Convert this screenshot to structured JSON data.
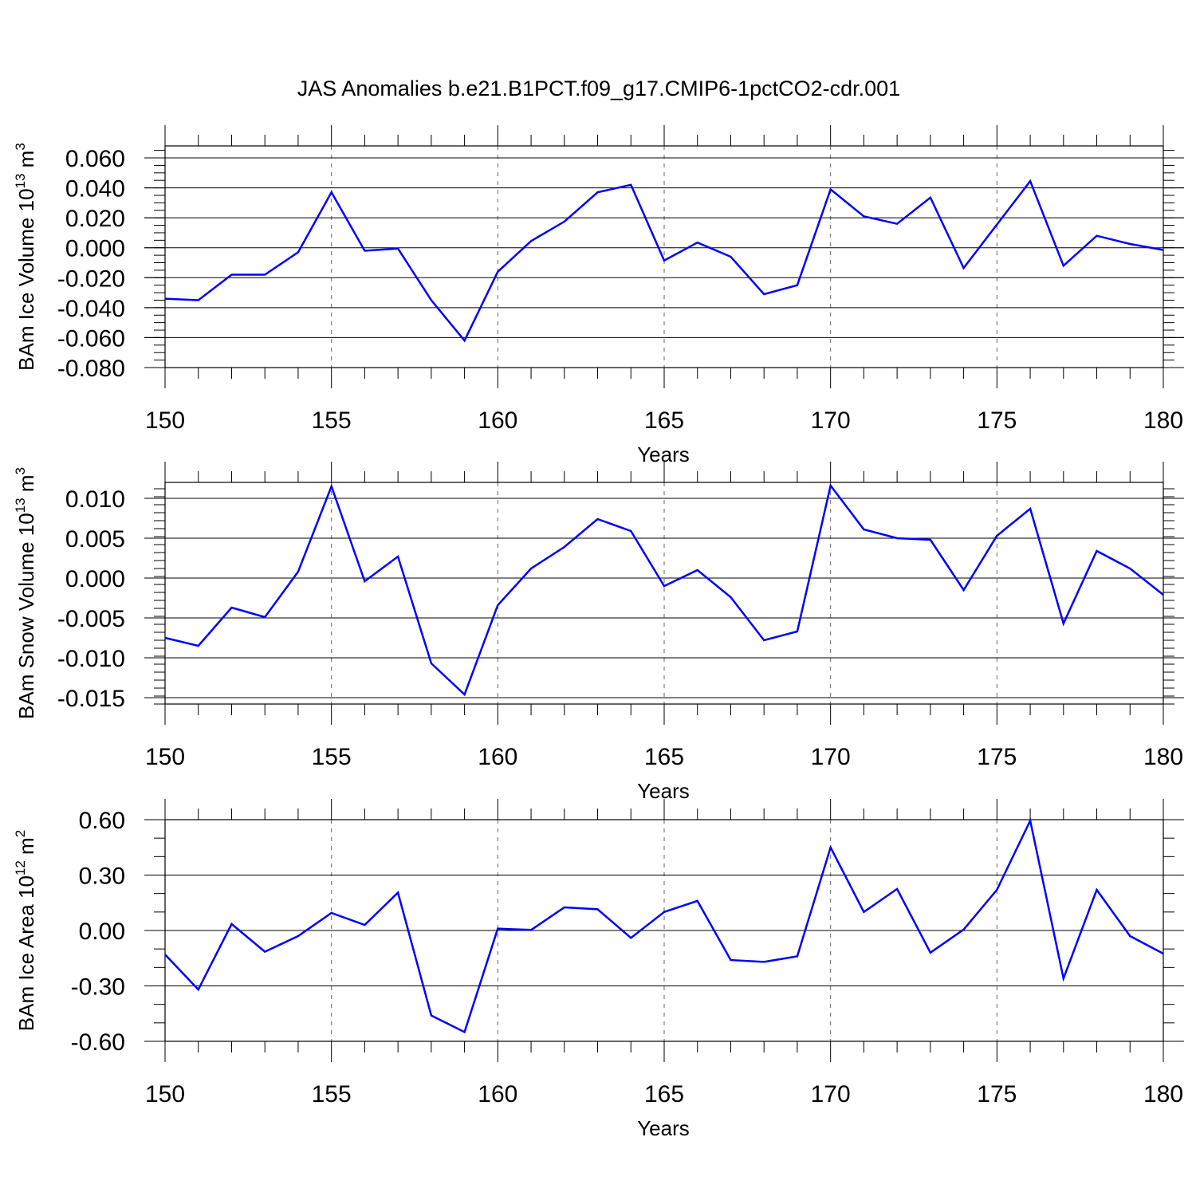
{
  "title": "JAS Anomalies b.e21.B1PCT.f09_g17.CMIP6-1pctCO2-cdr.001",
  "chart_data": [
    {
      "type": "line",
      "ylabel_main": "BAm Ice Volume 10",
      "ylabel_exp": "13",
      "ylabel_unit": " m",
      "ylabel_unit_exp": "3",
      "xlabel": "Years",
      "xlim": [
        150,
        180
      ],
      "ylim": [
        -0.08,
        0.068
      ],
      "yticks": [
        -0.08,
        -0.06,
        -0.04,
        -0.02,
        0.0,
        0.02,
        0.04,
        0.06
      ],
      "ytick_labels": [
        "-0.080",
        "-0.060",
        "-0.040",
        "-0.020",
        "0.000",
        "0.020",
        "0.040",
        "0.060"
      ],
      "yminor": 0.005,
      "xticks": [
        150,
        155,
        160,
        165,
        170,
        175,
        180
      ],
      "xtick_labels": [
        "150",
        "155",
        "160",
        "165",
        "170",
        "175",
        "180"
      ],
      "grid_x": [
        155,
        160,
        165,
        170,
        175
      ],
      "x": [
        150,
        151,
        152,
        153,
        154,
        155,
        156,
        157,
        158,
        159,
        160,
        161,
        162,
        163,
        164,
        165,
        166,
        167,
        168,
        169,
        170,
        171,
        172,
        173,
        174,
        175,
        176,
        177,
        178,
        179,
        180
      ],
      "y": [
        -0.034,
        -0.035,
        -0.018,
        -0.018,
        -0.003,
        0.037,
        -0.002,
        -0.0005,
        -0.035,
        -0.062,
        -0.016,
        0.0045,
        0.0175,
        0.037,
        0.042,
        -0.0085,
        0.0035,
        -0.006,
        -0.031,
        -0.025,
        0.039,
        0.021,
        0.016,
        0.0335,
        -0.0135,
        0.0155,
        0.0445,
        -0.012,
        0.008,
        0.0025,
        -0.0015
      ]
    },
    {
      "type": "line",
      "ylabel_main": "BAm Snow Volume 10",
      "ylabel_exp": "13",
      "ylabel_unit": " m",
      "ylabel_unit_exp": "3",
      "xlabel": "Years",
      "xlim": [
        150,
        180
      ],
      "ylim": [
        -0.0158,
        0.012
      ],
      "yticks": [
        -0.015,
        -0.01,
        -0.005,
        0.0,
        0.005,
        0.01
      ],
      "ytick_labels": [
        "-0.015",
        "-0.010",
        "-0.005",
        "0.000",
        "0.005",
        "0.010"
      ],
      "yminor": 0.001,
      "xticks": [
        150,
        155,
        160,
        165,
        170,
        175,
        180
      ],
      "xtick_labels": [
        "150",
        "155",
        "160",
        "165",
        "170",
        "175",
        "180"
      ],
      "grid_x": [
        155,
        160,
        165,
        170,
        175
      ],
      "x": [
        150,
        151,
        152,
        153,
        154,
        155,
        156,
        157,
        158,
        159,
        160,
        161,
        162,
        163,
        164,
        165,
        166,
        167,
        168,
        169,
        170,
        171,
        172,
        173,
        174,
        175,
        176,
        177,
        178,
        179,
        180
      ],
      "y": [
        -0.0075,
        -0.0085,
        -0.0037,
        -0.0049,
        0.0008,
        0.0115,
        -0.0004,
        0.0027,
        -0.0107,
        -0.0146,
        -0.0034,
        0.0012,
        0.0039,
        0.0074,
        0.0059,
        -0.001,
        0.001,
        -0.0024,
        -0.0078,
        -0.0067,
        0.0116,
        0.0061,
        0.005,
        0.0048,
        -0.0015,
        0.0053,
        0.0087,
        -0.0057,
        0.0034,
        0.0012,
        -0.0021
      ]
    },
    {
      "type": "line",
      "ylabel_main": "BAm Ice Area 10",
      "ylabel_exp": "12",
      "ylabel_unit": " m",
      "ylabel_unit_exp": "2",
      "xlabel": "Years",
      "xlim": [
        150,
        180
      ],
      "ylim": [
        -0.6,
        0.6
      ],
      "yticks": [
        -0.6,
        -0.3,
        0.0,
        0.3,
        0.6
      ],
      "ytick_labels": [
        "-0.60",
        "-0.30",
        "0.00",
        "0.30",
        "0.60"
      ],
      "yminor": 0.1,
      "xticks": [
        150,
        155,
        160,
        165,
        170,
        175,
        180
      ],
      "xtick_labels": [
        "150",
        "155",
        "160",
        "165",
        "170",
        "175",
        "180"
      ],
      "grid_x": [
        155,
        160,
        165,
        170,
        175
      ],
      "x": [
        150,
        151,
        152,
        153,
        154,
        155,
        156,
        157,
        158,
        159,
        160,
        161,
        162,
        163,
        164,
        165,
        166,
        167,
        168,
        169,
        170,
        171,
        172,
        173,
        174,
        175,
        176,
        177,
        178,
        179,
        180
      ],
      "y": [
        -0.13,
        -0.32,
        0.035,
        -0.115,
        -0.03,
        0.095,
        0.03,
        0.205,
        -0.46,
        -0.55,
        0.01,
        0.003,
        0.125,
        0.115,
        -0.04,
        0.1,
        0.16,
        -0.16,
        -0.17,
        -0.14,
        0.45,
        0.1,
        0.225,
        -0.12,
        0.005,
        0.22,
        0.595,
        -0.26,
        0.22,
        -0.03,
        -0.125
      ]
    }
  ]
}
